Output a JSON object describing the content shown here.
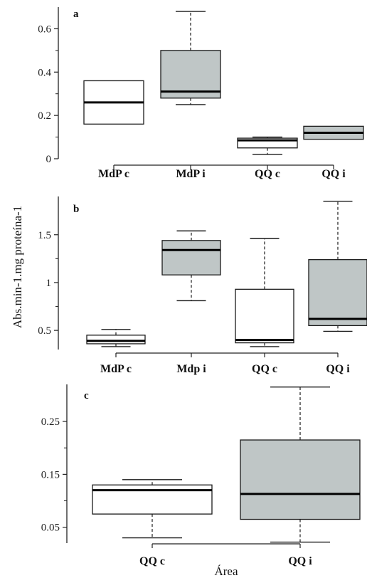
{
  "figure": {
    "ylabel": "Abs.min-1.mg proteína-1",
    "xlabel": "Área",
    "colors": {
      "c": "#ffffff",
      "i": "#bfc6c6",
      "stroke": "#1a1a1a"
    }
  },
  "chart_data": [
    {
      "type": "box",
      "panel": "a",
      "categories": [
        "MdP c",
        "MdP i",
        "QQ c",
        "QQ i"
      ],
      "fills": [
        "c",
        "i",
        "c",
        "i"
      ],
      "ylim": [
        0,
        0.7
      ],
      "yticks": [
        0,
        0.2,
        0.4,
        0.6
      ],
      "yticklabels": [
        "0",
        "0.2",
        "0.4",
        "0.6"
      ],
      "boxes": [
        {
          "min": null,
          "q1": 0.16,
          "median": 0.26,
          "q3": 0.36,
          "max": null
        },
        {
          "min": 0.25,
          "q1": 0.28,
          "median": 0.31,
          "q3": 0.5,
          "max": 0.68
        },
        {
          "min": 0.02,
          "q1": 0.05,
          "median": 0.085,
          "q3": 0.095,
          "max": 0.1
        },
        {
          "min": null,
          "q1": 0.09,
          "median": 0.12,
          "q3": 0.15,
          "max": null
        }
      ]
    },
    {
      "type": "box",
      "panel": "b",
      "categories": [
        "MdP c",
        "Mdp i",
        "QQ c",
        "QQ i"
      ],
      "fills": [
        "c",
        "i",
        "c",
        "i"
      ],
      "ylim": [
        0.3,
        1.9
      ],
      "yticks": [
        0.5,
        1,
        1.5
      ],
      "yticklabels": [
        "0.5",
        "1",
        "1.5"
      ],
      "boxes": [
        {
          "min": 0.33,
          "q1": 0.36,
          "median": 0.39,
          "q3": 0.45,
          "max": 0.51
        },
        {
          "min": 0.81,
          "q1": 1.08,
          "median": 1.34,
          "q3": 1.44,
          "max": 1.54
        },
        {
          "min": 0.33,
          "q1": 0.37,
          "median": 0.4,
          "q3": 0.93,
          "max": 1.46
        },
        {
          "min": 0.49,
          "q1": 0.55,
          "median": 0.62,
          "q3": 1.24,
          "max": 1.85
        }
      ]
    },
    {
      "type": "box",
      "panel": "c",
      "categories": [
        "QQ c",
        "QQ i"
      ],
      "fills": [
        "c",
        "i"
      ],
      "ylim": [
        0.02,
        0.32
      ],
      "yticks": [
        0.05,
        0.15,
        0.25
      ],
      "yticklabels": [
        "0.05",
        "0.15",
        "0.25"
      ],
      "boxes": [
        {
          "min": 0.03,
          "q1": 0.075,
          "median": 0.12,
          "q3": 0.13,
          "max": 0.14
        },
        {
          "min": 0.022,
          "q1": 0.065,
          "median": 0.113,
          "q3": 0.215,
          "max": 0.315
        }
      ]
    }
  ]
}
